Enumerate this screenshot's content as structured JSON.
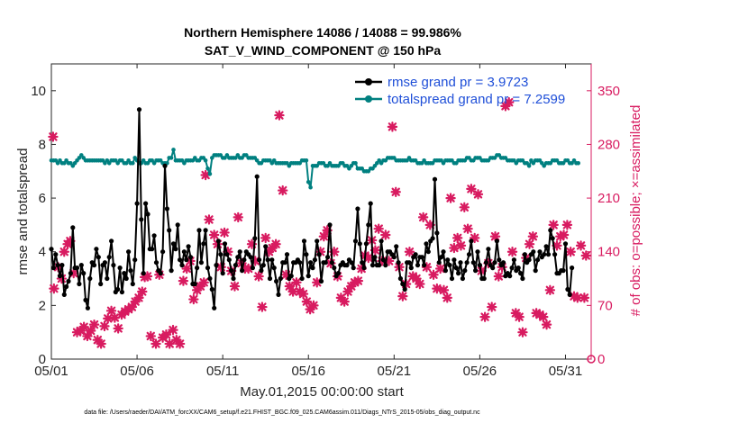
{
  "chart_data": {
    "type": "line",
    "title": "Northern Hemisphere 14086 / 14088 = 99.986%",
    "subtitle": "SAT_V_WIND_COMPONENT @ 150 hPa",
    "xlabel": "May.01,2015 00:00:00 start",
    "ylabel_left": "rmse and totalspread",
    "ylabel_right": "# of obs: o=possible; ×=assimilated",
    "footnote": "data file: /Users/raeder/DAI/ATM_forcXX/CAM6_setup/f.e21.FHIST_BGC.f09_025.CAM6assim.011/Diags_NTrS_2015-05/obs_diag_output.nc",
    "xlim": [
      0,
      31.5
    ],
    "ylim_left": [
      0,
      11
    ],
    "ylim_right": [
      0,
      385
    ],
    "x_ticks": [
      {
        "value": 0,
        "label": "05/01"
      },
      {
        "value": 5,
        "label": "05/06"
      },
      {
        "value": 10,
        "label": "05/11"
      },
      {
        "value": 15,
        "label": "05/16"
      },
      {
        "value": 20,
        "label": "05/21"
      },
      {
        "value": 25,
        "label": "05/26"
      },
      {
        "value": 30,
        "label": "05/31"
      }
    ],
    "y_ticks_left": [
      "0",
      "2",
      "4",
      "6",
      "8",
      "10"
    ],
    "y_ticks_right": [
      "0",
      "70",
      "140",
      "210",
      "280",
      "350"
    ],
    "colors": {
      "rmse": "#000000",
      "spread": "#008080",
      "obs": "#d81b60",
      "legend_text": "#1f4fd8",
      "right_axis": "#d81b60"
    },
    "series": [
      {
        "name": "rmse grand pr = 3.9723",
        "axis": "left",
        "x_start": 0,
        "x_step": 0.125,
        "values": [
          4.1,
          3.4,
          3.9,
          3.5,
          3.1,
          3.5,
          2.4,
          2.7,
          2.9,
          3.2,
          4.9,
          3.4,
          3.4,
          2.8,
          3.5,
          3.2,
          2.2,
          1.9,
          3.0,
          3.6,
          3.5,
          4.1,
          3.8,
          2.8,
          3.5,
          3.6,
          3.0,
          3.8,
          4.4,
          3.5,
          2.5,
          2.6,
          3.4,
          2.5,
          3.2,
          3.0,
          4.0,
          3.3,
          2.8,
          3.7,
          5.8,
          9.3,
          5.2,
          3.2,
          5.8,
          5.4,
          4.1,
          4.1,
          4.6,
          3.6,
          3.3,
          3.2,
          4.0,
          7.2,
          5.6,
          4.8,
          3.3,
          4.3,
          4.1,
          5.0,
          3.7,
          3.5,
          4.0,
          3.7,
          4.2,
          3.8,
          2.8,
          2.8,
          3.4,
          4.8,
          3.6,
          4.3,
          4.8,
          3.4,
          3.0,
          2.6,
          1.9,
          3.5,
          4.4,
          3.9,
          3.2,
          4.3,
          3.9,
          3.7,
          3.3,
          3.0,
          3.5,
          3.8,
          4.0,
          3.3,
          3.7,
          4.0,
          3.9,
          3.8,
          3.4,
          4.5,
          6.8,
          3.7,
          3.3,
          3.5,
          4.2,
          3.7,
          3.0,
          3.7,
          3.4,
          2.9,
          2.4,
          3.0,
          3.6,
          3.6,
          3.9,
          3.0,
          3.1,
          3.6,
          3.6,
          3.7,
          3.6,
          3.0,
          4.4,
          3.9,
          3.1,
          3.6,
          3.4,
          3.7,
          4.4,
          3.9,
          2.9,
          3.6,
          3.6,
          3.8,
          5.0,
          3.6,
          3.4,
          3.1,
          3.2,
          3.5,
          3.6,
          3.5,
          3.5,
          3.7,
          3.6,
          3.4,
          4.4,
          5.6,
          4.3,
          3.6,
          3.4,
          4.3,
          5.0,
          5.8,
          3.5,
          3.8,
          3.5,
          3.5,
          4.4,
          3.7,
          3.5,
          4.0,
          4.0,
          3.9,
          3.8,
          4.2,
          3.6,
          3.0,
          2.8,
          2.6,
          3.6,
          3.6,
          3.4,
          3.8,
          3.9,
          3.5,
          3.8,
          3.8,
          3.5,
          4.3,
          4.0,
          4.4,
          4.5,
          6.7,
          4.7,
          3.6,
          3.8,
          4.0,
          3.3,
          3.7,
          3.5,
          3.0,
          3.7,
          3.4,
          3.2,
          3.6,
          3.0,
          3.3,
          3.6,
          3.9,
          4.4,
          3.6,
          3.3,
          4.0,
          3.5,
          3.0,
          3.0,
          3.6,
          4.1,
          3.5,
          3.4,
          3.6,
          4.4,
          3.7,
          3.5,
          3.6,
          3.1,
          3.2,
          3.1,
          3.4,
          3.7,
          3.3,
          3.4,
          3.2,
          3.0,
          3.9,
          3.6,
          3.7,
          3.9,
          4.0,
          3.3,
          3.7,
          4.0,
          3.8,
          3.9,
          4.2,
          3.9,
          4.8,
          4.5,
          3.9,
          3.2,
          3.2,
          3.3,
          3.3,
          4.3,
          2.6,
          2.4,
          3.4
        ]
      },
      {
        "name": "totalspread grand pr = 7.2599",
        "axis": "left",
        "x_start": 0,
        "x_step": 0.125,
        "values": [
          7.4,
          7.4,
          7.4,
          7.3,
          7.4,
          7.3,
          7.3,
          7.4,
          7.3,
          7.3,
          7.2,
          7.3,
          7.4,
          7.5,
          7.6,
          7.5,
          7.4,
          7.4,
          7.4,
          7.4,
          7.4,
          7.4,
          7.4,
          7.4,
          7.4,
          7.3,
          7.4,
          7.3,
          7.4,
          7.4,
          7.4,
          7.3,
          7.4,
          7.4,
          7.3,
          7.3,
          7.4,
          7.3,
          7.3,
          7.5,
          7.4,
          7.3,
          7.3,
          7.4,
          7.3,
          7.3,
          7.4,
          7.4,
          7.3,
          7.4,
          7.4,
          7.4,
          7.3,
          7.3,
          7.3,
          7.5,
          7.5,
          7.8,
          7.4,
          7.4,
          7.4,
          7.4,
          7.3,
          7.4,
          7.4,
          7.4,
          7.4,
          7.5,
          7.4,
          7.4,
          7.5,
          7.5,
          7.4,
          7.1,
          6.9,
          7.5,
          7.6,
          7.6,
          7.6,
          7.6,
          7.5,
          7.5,
          7.6,
          7.5,
          7.5,
          7.5,
          7.5,
          7.6,
          7.5,
          7.5,
          7.6,
          7.6,
          7.5,
          7.5,
          7.5,
          7.5,
          7.4,
          7.3,
          7.3,
          7.4,
          7.4,
          7.4,
          7.4,
          7.3,
          7.4,
          7.3,
          7.3,
          7.3,
          7.3,
          7.3,
          7.3,
          7.2,
          7.3,
          7.3,
          7.3,
          7.3,
          7.3,
          7.4,
          7.4,
          7.4,
          6.6,
          6.4,
          7.2,
          7.2,
          7.2,
          7.3,
          7.3,
          7.3,
          7.2,
          7.2,
          7.3,
          7.2,
          7.2,
          7.2,
          7.2,
          7.3,
          7.3,
          7.2,
          7.2,
          7.1,
          7.2,
          7.3,
          7.3,
          7.1,
          7.1,
          7.1,
          7.0,
          7.0,
          7.0,
          7.1,
          7.1,
          7.2,
          7.3,
          7.4,
          7.3,
          7.4,
          7.4,
          7.5,
          7.5,
          7.5,
          7.5,
          7.4,
          7.4,
          7.4,
          7.4,
          7.4,
          7.4,
          7.5,
          7.4,
          7.4,
          7.4,
          7.3,
          7.3,
          7.3,
          7.4,
          7.3,
          7.3,
          7.3,
          7.3,
          7.4,
          7.4,
          7.4,
          7.4,
          7.3,
          7.4,
          7.4,
          7.4,
          7.4,
          7.3,
          7.3,
          7.4,
          7.4,
          7.4,
          7.4,
          7.5,
          7.5,
          7.4,
          7.4,
          7.5,
          7.5,
          7.5,
          7.4,
          7.4,
          7.4,
          7.4,
          7.5,
          7.5,
          7.5,
          7.6,
          7.6,
          7.5,
          7.5,
          7.5,
          7.4,
          7.4,
          7.4,
          7.4,
          7.3,
          7.4,
          7.4,
          7.4,
          7.3,
          7.3,
          7.2,
          7.4,
          7.3,
          7.4,
          7.4,
          7.4,
          7.3,
          7.2,
          7.3,
          7.3,
          7.3,
          7.4,
          7.4,
          7.4,
          7.3,
          7.3,
          7.3,
          7.4,
          7.4,
          7.3,
          7.3,
          7.4,
          7.3,
          7.3
        ]
      },
      {
        "name": "obs assimilated",
        "axis": "right",
        "points": [
          [
            0.1,
            290
          ],
          [
            0.15,
            92
          ],
          [
            0.4,
            120
          ],
          [
            0.6,
            105
          ],
          [
            0.75,
            140
          ],
          [
            0.95,
            150
          ],
          [
            1.1,
            154
          ],
          [
            1.3,
            112
          ],
          [
            1.5,
            35
          ],
          [
            1.7,
            37
          ],
          [
            1.9,
            42
          ],
          [
            2.1,
            30
          ],
          [
            2.3,
            37
          ],
          [
            2.5,
            45
          ],
          [
            2.7,
            25
          ],
          [
            2.9,
            20
          ],
          [
            3.1,
            43
          ],
          [
            3.3,
            53
          ],
          [
            3.5,
            63
          ],
          [
            3.7,
            54
          ],
          [
            3.9,
            40
          ],
          [
            4.1,
            58
          ],
          [
            4.3,
            62
          ],
          [
            4.5,
            65
          ],
          [
            4.7,
            68
          ],
          [
            4.9,
            75
          ],
          [
            5.1,
            80
          ],
          [
            5.3,
            88
          ],
          [
            5.45,
            107
          ],
          [
            5.6,
            108
          ],
          [
            5.8,
            30
          ],
          [
            6.1,
            20
          ],
          [
            6.3,
            110
          ],
          [
            6.5,
            28
          ],
          [
            6.7,
            32
          ],
          [
            6.9,
            20
          ],
          [
            7.1,
            38
          ],
          [
            7.3,
            25
          ],
          [
            7.5,
            20
          ],
          [
            7.7,
            102
          ],
          [
            7.9,
            118
          ],
          [
            8.1,
            128
          ],
          [
            8.3,
            78
          ],
          [
            8.5,
            90
          ],
          [
            8.7,
            95
          ],
          [
            8.9,
            100
          ],
          [
            9.0,
            240
          ],
          [
            9.2,
            182
          ],
          [
            9.5,
            162
          ],
          [
            9.7,
            150
          ],
          [
            9.9,
            120
          ],
          [
            10.1,
            165
          ],
          [
            10.3,
            140
          ],
          [
            10.5,
            115
          ],
          [
            10.7,
            95
          ],
          [
            10.9,
            185
          ],
          [
            11.1,
            125
          ],
          [
            11.3,
            118
          ],
          [
            11.5,
            118
          ],
          [
            11.7,
            150
          ],
          [
            11.9,
            128
          ],
          [
            12.1,
            108
          ],
          [
            12.3,
            68
          ],
          [
            12.5,
            158
          ],
          [
            12.7,
            140
          ],
          [
            12.9,
            145
          ],
          [
            13.1,
            150
          ],
          [
            13.3,
            318
          ],
          [
            13.5,
            220
          ],
          [
            13.7,
            110
          ],
          [
            13.9,
            95
          ],
          [
            14.1,
            88
          ],
          [
            14.3,
            100
          ],
          [
            14.5,
            88
          ],
          [
            14.7,
            85
          ],
          [
            14.9,
            75
          ],
          [
            15.1,
            65
          ],
          [
            15.3,
            70
          ],
          [
            15.5,
            100
          ],
          [
            15.7,
            140
          ],
          [
            15.9,
            160
          ],
          [
            16.1,
            168
          ],
          [
            16.3,
            125
          ],
          [
            16.5,
            140
          ],
          [
            16.7,
            108
          ],
          [
            16.9,
            80
          ],
          [
            17.1,
            75
          ],
          [
            17.3,
            88
          ],
          [
            17.5,
            95
          ],
          [
            17.7,
            100
          ],
          [
            17.9,
            102
          ],
          [
            18.1,
            118
          ],
          [
            18.3,
            135
          ],
          [
            18.5,
            132
          ],
          [
            18.7,
            155
          ],
          [
            18.9,
            142
          ],
          [
            19.1,
            170
          ],
          [
            19.3,
            128
          ],
          [
            19.5,
            162
          ],
          [
            19.7,
            128
          ],
          [
            19.9,
            303
          ],
          [
            20.1,
            218
          ],
          [
            20.3,
            120
          ],
          [
            20.5,
            82
          ],
          [
            20.7,
            98
          ],
          [
            20.9,
            140
          ],
          [
            21.1,
            108
          ],
          [
            21.3,
            105
          ],
          [
            21.5,
            98
          ],
          [
            21.7,
            185
          ],
          [
            21.9,
            120
          ],
          [
            22.1,
            175
          ],
          [
            22.3,
            110
          ],
          [
            22.5,
            92
          ],
          [
            22.7,
            118
          ],
          [
            22.9,
            90
          ],
          [
            23.1,
            80
          ],
          [
            23.3,
            210
          ],
          [
            23.5,
            145
          ],
          [
            23.7,
            158
          ],
          [
            23.9,
            148
          ],
          [
            24.1,
            198
          ],
          [
            24.3,
            170
          ],
          [
            24.5,
            222
          ],
          [
            24.7,
            158
          ],
          [
            24.9,
            215
          ],
          [
            25.1,
            115
          ],
          [
            25.3,
            55
          ],
          [
            25.5,
            125
          ],
          [
            25.7,
            68
          ],
          [
            25.9,
            160
          ],
          [
            26.1,
            108
          ],
          [
            26.3,
            120
          ],
          [
            26.5,
            330
          ],
          [
            26.7,
            335
          ],
          [
            26.9,
            140
          ],
          [
            27.1,
            60
          ],
          [
            27.3,
            55
          ],
          [
            27.5,
            35
          ],
          [
            27.7,
            132
          ],
          [
            27.9,
            150
          ],
          [
            28.1,
            160
          ],
          [
            28.3,
            60
          ],
          [
            28.5,
            58
          ],
          [
            28.7,
            55
          ],
          [
            28.9,
            45
          ],
          [
            29.1,
            90
          ],
          [
            29.3,
            175
          ],
          [
            29.5,
            148
          ],
          [
            29.7,
            160
          ],
          [
            29.9,
            162
          ],
          [
            30.1,
            175
          ],
          [
            30.3,
            140
          ],
          [
            30.5,
            82
          ],
          [
            30.7,
            80
          ],
          [
            30.9,
            148
          ],
          [
            31.1,
            80
          ],
          [
            31.2,
            135
          ]
        ]
      }
    ]
  },
  "legend": {
    "rmse_label": "rmse grand pr = 3.9723",
    "spread_label": "totalspread grand pr = 7.2599"
  }
}
